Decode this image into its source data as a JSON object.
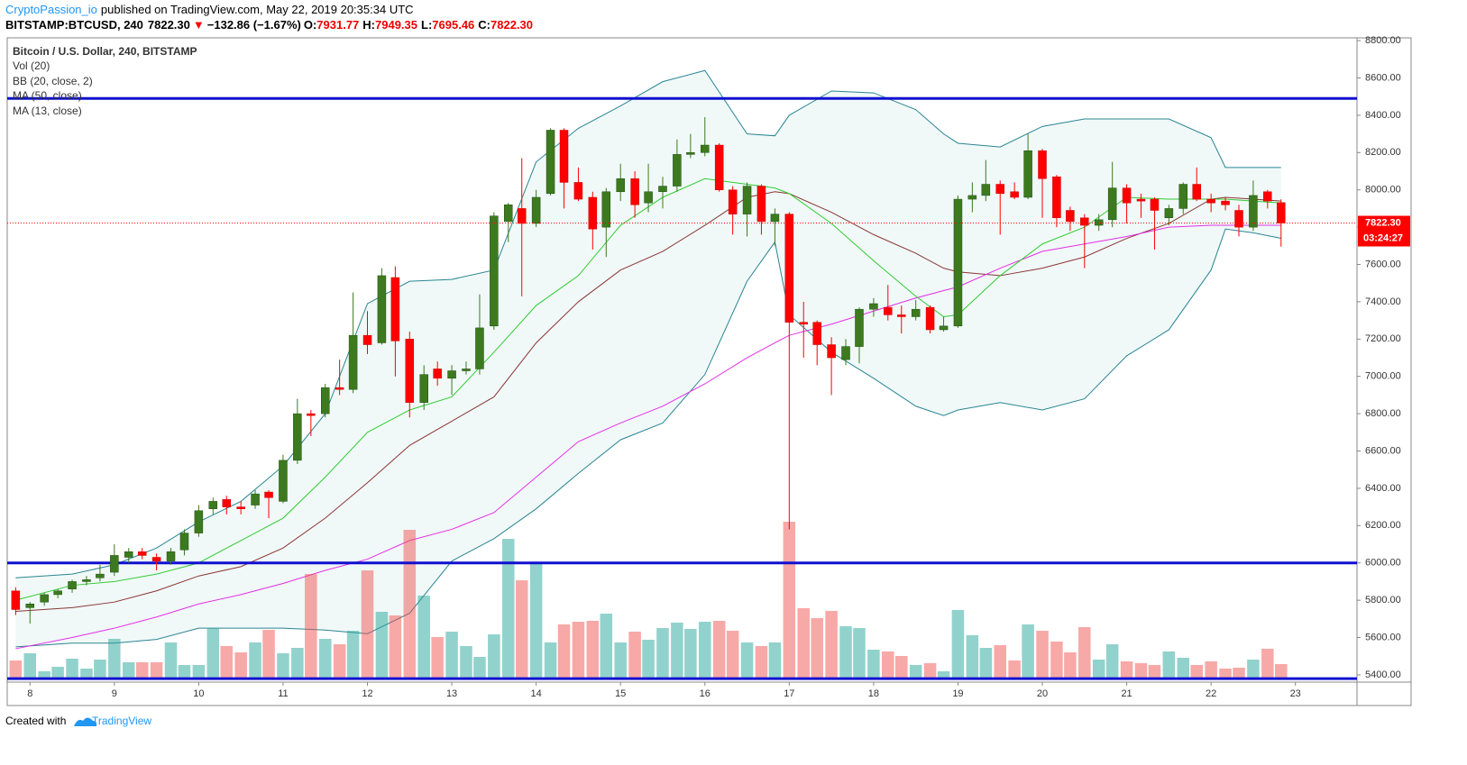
{
  "header": {
    "publisher": "CryptoPassion_io",
    "published": "published on TradingView.com, May 22, 2019 20:35:34 UTC",
    "symbol": "BITSTAMP:BTCUSD, 240",
    "price": "7822.30",
    "arrow": "▼",
    "change": "−132.86 (−1.67%)",
    "ohlc": [
      {
        "label": "O:",
        "value": "7931.77"
      },
      {
        "label": "H:",
        "value": "7949.35"
      },
      {
        "label": "L:",
        "value": "7695.46"
      },
      {
        "label": "C:",
        "value": "7822.30"
      }
    ]
  },
  "footer": {
    "text": "Created with",
    "brand": "TradingView"
  },
  "chart_data": {
    "type": "candlestick",
    "legend": [
      "Bitcoin / U.S. Dollar, 240, BITSTAMP",
      "Vol (20)",
      "BB (20, close, 2)",
      "MA (50, close)",
      "MA (13, close)"
    ],
    "xlim": [
      7.73,
      23.73
    ],
    "xticks": [
      8,
      9,
      10,
      11,
      12,
      13,
      14,
      15,
      16,
      17,
      18,
      19,
      20,
      21,
      22,
      23
    ],
    "ylim": [
      5361,
      8815
    ],
    "yticks": [
      {
        "value": 5400,
        "label": "5400.00"
      },
      {
        "value": 5600,
        "label": "5600.00"
      },
      {
        "value": 5800,
        "label": "5800.00"
      },
      {
        "value": 6000,
        "label": "6000.00"
      },
      {
        "value": 6200,
        "label": "6200.00"
      },
      {
        "value": 6400,
        "label": "6400.00"
      },
      {
        "value": 6600,
        "label": "6600.00"
      },
      {
        "value": 6800,
        "label": "6800.00"
      },
      {
        "value": 7000,
        "label": "7000.00"
      },
      {
        "value": 7200,
        "label": "7200.00"
      },
      {
        "value": 7400,
        "label": "7400.00"
      },
      {
        "value": 7600,
        "label": "7600.00"
      },
      {
        "value": 7800,
        "label": "7800.00"
      },
      {
        "value": 8000,
        "label": "8000.00"
      },
      {
        "value": 8200,
        "label": "8200.00"
      },
      {
        "value": 8400,
        "label": "8400.00"
      },
      {
        "value": 8600,
        "label": "8600.00"
      },
      {
        "value": 8800,
        "label": "8800.00"
      }
    ],
    "up_color": "#3d7a1f",
    "down_color": "#ff0000",
    "volume_up_color": "rgba(38,166,154,0.5)",
    "volume_down_color": "rgba(239,83,80,0.5)",
    "x": [
      7.83,
      8,
      8.17,
      8.33,
      8.5,
      8.67,
      8.83,
      9,
      9.17,
      9.33,
      9.5,
      9.67,
      9.83,
      10,
      10.17,
      10.33,
      10.5,
      10.67,
      10.83,
      11,
      11.17,
      11.33,
      11.5,
      11.67,
      11.83,
      12,
      12.17,
      12.33,
      12.5,
      12.67,
      12.83,
      13,
      13.17,
      13.33,
      13.5,
      13.67,
      13.83,
      14,
      14.17,
      14.33,
      14.5,
      14.67,
      14.83,
      15,
      15.17,
      15.33,
      15.5,
      15.67,
      15.83,
      16,
      16.17,
      16.33,
      16.5,
      16.67,
      16.83,
      17,
      17.17,
      17.33,
      17.5,
      17.67,
      17.83,
      18,
      18.17,
      18.33,
      18.5,
      18.67,
      18.83,
      19,
      19.17,
      19.33,
      19.5,
      19.67,
      19.83,
      20,
      20.17,
      20.33,
      20.5,
      20.67,
      20.83,
      21,
      21.17,
      21.33,
      21.5,
      21.67,
      21.83,
      22,
      22.17,
      22.33,
      22.5,
      22.67,
      22.83
    ],
    "candles": [
      [
        5850,
        5870,
        5720,
        5750
      ],
      [
        5760,
        5790,
        5675,
        5780
      ],
      [
        5790,
        5840,
        5770,
        5830
      ],
      [
        5830,
        5860,
        5810,
        5850
      ],
      [
        5860,
        5910,
        5840,
        5900
      ],
      [
        5900,
        5930,
        5880,
        5910
      ],
      [
        5920,
        5990,
        5900,
        5940
      ],
      [
        5950,
        6100,
        5930,
        6040
      ],
      [
        6030,
        6080,
        6000,
        6060
      ],
      [
        6060,
        6080,
        6020,
        6040
      ],
      [
        6030,
        6050,
        5960,
        6010
      ],
      [
        6010,
        6080,
        5990,
        6060
      ],
      [
        6070,
        6180,
        6040,
        6160
      ],
      [
        6160,
        6310,
        6140,
        6280
      ],
      [
        6290,
        6350,
        6260,
        6330
      ],
      [
        6340,
        6360,
        6260,
        6300
      ],
      [
        6300,
        6330,
        6260,
        6290
      ],
      [
        6310,
        6390,
        6290,
        6370
      ],
      [
        6380,
        6390,
        6240,
        6350
      ],
      [
        6330,
        6580,
        6320,
        6550
      ],
      [
        6550,
        6880,
        6530,
        6800
      ],
      [
        6800,
        6820,
        6680,
        6790
      ],
      [
        6800,
        6960,
        6780,
        6940
      ],
      [
        6940,
        7090,
        6900,
        6930
      ],
      [
        6930,
        7450,
        6910,
        7220
      ],
      [
        7220,
        7350,
        7120,
        7170
      ],
      [
        7180,
        7580,
        7170,
        7540
      ],
      [
        7530,
        7590,
        7000,
        7190
      ],
      [
        7200,
        7240,
        6780,
        6860
      ],
      [
        6860,
        7060,
        6820,
        7010
      ],
      [
        7040,
        7080,
        6950,
        6990
      ],
      [
        6990,
        7060,
        6900,
        7030
      ],
      [
        7030,
        7080,
        7010,
        7040
      ],
      [
        7040,
        7440,
        7010,
        7260
      ],
      [
        7270,
        7880,
        7250,
        7860
      ],
      [
        7830,
        7930,
        7720,
        7920
      ],
      [
        7900,
        8170,
        7430,
        7820
      ],
      [
        7820,
        8000,
        7800,
        7960
      ],
      [
        7980,
        8330,
        7970,
        8320
      ],
      [
        8320,
        8330,
        7900,
        8040
      ],
      [
        8040,
        8120,
        7940,
        7950
      ],
      [
        7960,
        7990,
        7680,
        7790
      ],
      [
        7800,
        8010,
        7640,
        7990
      ],
      [
        7990,
        8140,
        7940,
        8060
      ],
      [
        8060,
        8100,
        7850,
        7920
      ],
      [
        7930,
        8140,
        7880,
        7990
      ],
      [
        7990,
        8070,
        7900,
        8020
      ],
      [
        8020,
        8270,
        7990,
        8190
      ],
      [
        8190,
        8300,
        8170,
        8200
      ],
      [
        8200,
        8390,
        8180,
        8240
      ],
      [
        8240,
        8250,
        7990,
        8000
      ],
      [
        8000,
        8020,
        7760,
        7870
      ],
      [
        7870,
        8040,
        7750,
        8020
      ],
      [
        8020,
        8030,
        7760,
        7830
      ],
      [
        7830,
        7900,
        7700,
        7870
      ],
      [
        7870,
        7880,
        6180,
        7290
      ],
      [
        7290,
        7400,
        7100,
        7280
      ],
      [
        7290,
        7300,
        7060,
        7170
      ],
      [
        7170,
        7210,
        6900,
        7100
      ],
      [
        7090,
        7200,
        7060,
        7160
      ],
      [
        7160,
        7370,
        7070,
        7360
      ],
      [
        7360,
        7420,
        7320,
        7390
      ],
      [
        7370,
        7490,
        7300,
        7330
      ],
      [
        7330,
        7380,
        7230,
        7320
      ],
      [
        7320,
        7410,
        7300,
        7360
      ],
      [
        7370,
        7380,
        7230,
        7250
      ],
      [
        7250,
        7320,
        7240,
        7270
      ],
      [
        7270,
        7970,
        7260,
        7950
      ],
      [
        7950,
        8040,
        7880,
        7970
      ],
      [
        7970,
        8160,
        7940,
        8030
      ],
      [
        8030,
        8050,
        7760,
        7980
      ],
      [
        7990,
        8040,
        7950,
        7960
      ],
      [
        7960,
        8300,
        7950,
        8210
      ],
      [
        8210,
        8220,
        7850,
        8060
      ],
      [
        8070,
        8080,
        7800,
        7850
      ],
      [
        7890,
        7910,
        7780,
        7830
      ],
      [
        7850,
        7870,
        7580,
        7810
      ],
      [
        7810,
        7870,
        7780,
        7840
      ],
      [
        7840,
        8150,
        7800,
        8010
      ],
      [
        8010,
        8030,
        7820,
        7930
      ],
      [
        7950,
        7980,
        7850,
        7940
      ],
      [
        7950,
        7960,
        7680,
        7890
      ],
      [
        7850,
        7920,
        7810,
        7900
      ],
      [
        7900,
        8040,
        7870,
        8030
      ],
      [
        8030,
        8120,
        7940,
        7950
      ],
      [
        7950,
        7980,
        7880,
        7930
      ],
      [
        7940,
        7960,
        7890,
        7920
      ],
      [
        7890,
        7920,
        7750,
        7800
      ],
      [
        7800,
        8050,
        7780,
        7970
      ],
      [
        7990,
        8000,
        7900,
        7940
      ],
      [
        7931.77,
        7949.35,
        7695.46,
        7822.3
      ]
    ],
    "volume": [
      19,
      27,
      7,
      12,
      21,
      10,
      20,
      43,
      17,
      17,
      17,
      39,
      14,
      14,
      55,
      35,
      28,
      39,
      53,
      27,
      33,
      115,
      43,
      37,
      52,
      119,
      73,
      69,
      164,
      91,
      45,
      51,
      35,
      23,
      48,
      154,
      108,
      126,
      39,
      59,
      62,
      63,
      71,
      39,
      51,
      42,
      55,
      61,
      54,
      62,
      63,
      52,
      39,
      35,
      39,
      173,
      77,
      66,
      74,
      57,
      55,
      31,
      29,
      24,
      14,
      16,
      7,
      75,
      47,
      33,
      36,
      19,
      59,
      52,
      40,
      28,
      56,
      20,
      37,
      18,
      16,
      14,
      29,
      22,
      14,
      18,
      10,
      11,
      20,
      32,
      15
    ],
    "indicators": {
      "x": [
        7.83,
        8.5,
        9,
        9.5,
        10,
        10.5,
        11,
        11.5,
        12,
        12.5,
        13,
        13.5,
        14,
        14.5,
        15,
        15.5,
        16,
        16.5,
        16.83,
        17,
        17.5,
        18,
        18.5,
        18.83,
        19,
        19.5,
        20,
        20.5,
        21,
        21.5,
        22,
        22.17,
        22.5,
        22.83
      ],
      "band_fill": "rgba(38,166,154,0.07)",
      "lines": [
        {
          "color": "#2a8593",
          "values": [
            5920,
            5940,
            5990,
            6080,
            6220,
            6330,
            6520,
            6800,
            7390,
            7510,
            7520,
            7570,
            8150,
            8330,
            8450,
            8580,
            8640,
            8300,
            8290,
            8400,
            8530,
            8520,
            8430,
            8300,
            8250,
            8230,
            8340,
            8380,
            8380,
            8380,
            8280,
            8120,
            8120,
            8120
          ]
        },
        {
          "color": "#2a8593",
          "values": [
            5550,
            5570,
            5570,
            5590,
            5650,
            5650,
            5650,
            5640,
            5620,
            5730,
            6010,
            6130,
            6290,
            6480,
            6660,
            6750,
            7010,
            7510,
            7720,
            7330,
            7130,
            6990,
            6840,
            6790,
            6820,
            6860,
            6820,
            6880,
            7110,
            7250,
            7570,
            7790,
            7770,
            7740
          ]
        },
        {
          "color": "#8b3535",
          "values": [
            5740,
            5760,
            5790,
            5850,
            5930,
            5980,
            6080,
            6240,
            6430,
            6630,
            6760,
            6890,
            7180,
            7400,
            7570,
            7670,
            7810,
            7960,
            7990,
            7980,
            7880,
            7760,
            7660,
            7580,
            7560,
            7540,
            7580,
            7640,
            7740,
            7820,
            7950,
            7960,
            7950,
            7940
          ]
        },
        {
          "color": "#e62ee6",
          "values": [
            5540,
            5600,
            5650,
            5710,
            5780,
            5830,
            5890,
            5960,
            6020,
            6120,
            6180,
            6270,
            6460,
            6650,
            6750,
            6840,
            6960,
            7100,
            7180,
            7220,
            7280,
            7350,
            7420,
            7460,
            7480,
            7580,
            7670,
            7710,
            7750,
            7800,
            7810,
            7810,
            7810,
            7810
          ]
        },
        {
          "color": "#33cc33",
          "values": [
            5800,
            5880,
            5900,
            5940,
            6000,
            6120,
            6240,
            6460,
            6700,
            6820,
            6890,
            7130,
            7380,
            7540,
            7810,
            7960,
            8060,
            8030,
            8010,
            7980,
            7820,
            7620,
            7430,
            7320,
            7330,
            7540,
            7710,
            7800,
            7960,
            7950,
            7950,
            7950,
            7940,
            7930
          ]
        }
      ]
    },
    "levels": [
      8490,
      6000,
      5380
    ],
    "level_color": "#1010d0",
    "last_price": {
      "value": 7822.3,
      "label": "7822.30",
      "countdown": "03:24:27",
      "color": "#ff0000"
    }
  }
}
